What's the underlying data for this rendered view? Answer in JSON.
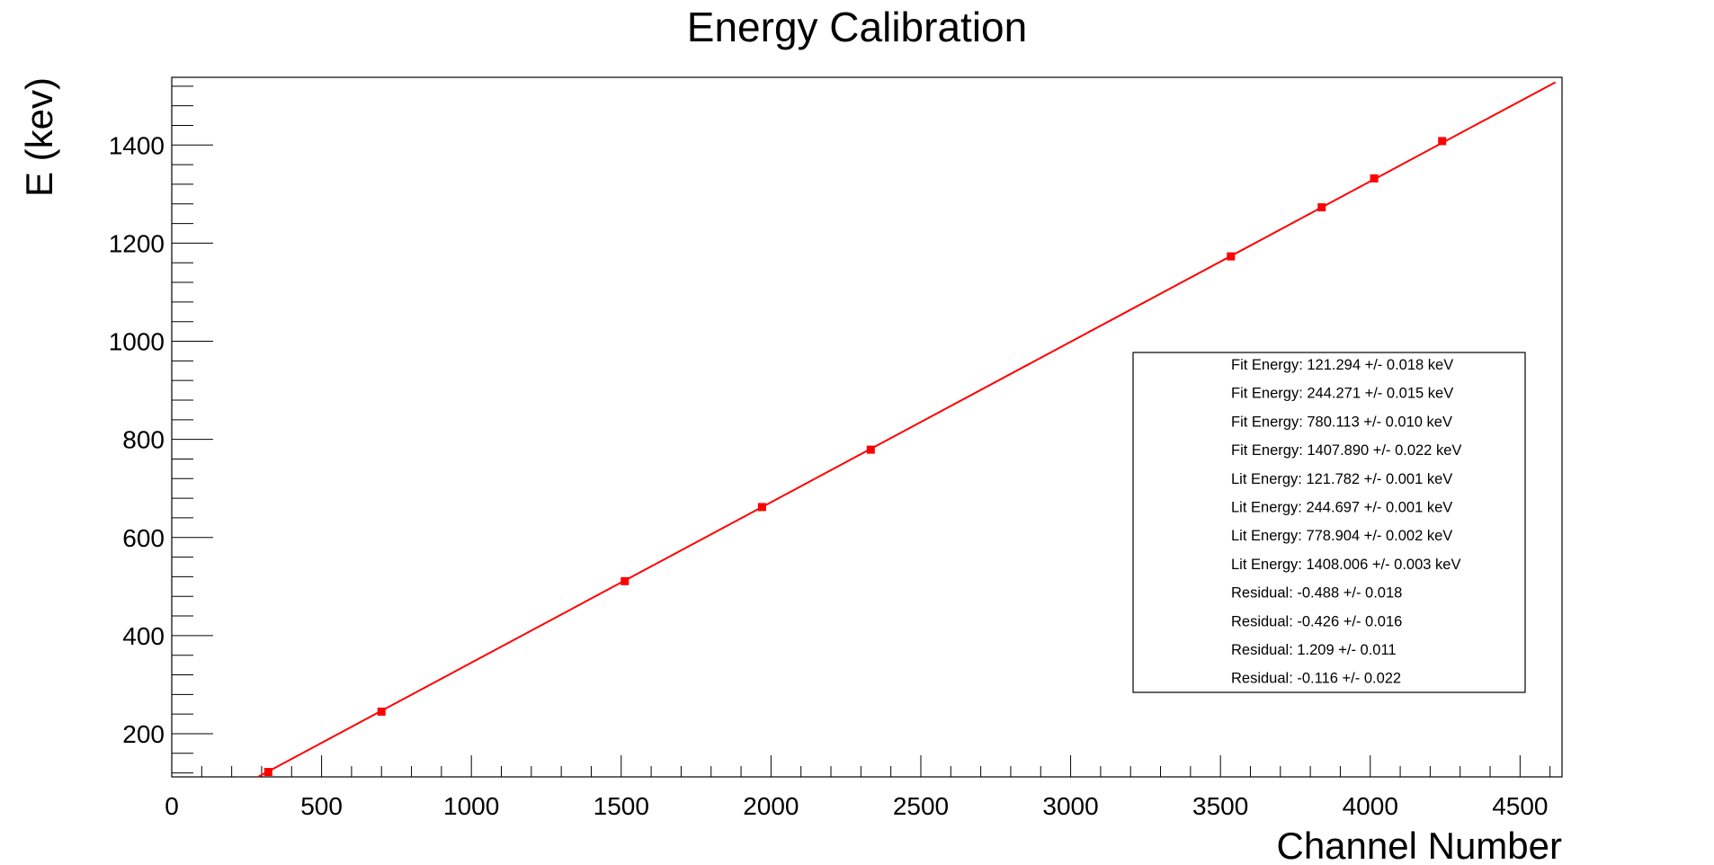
{
  "chart_data": {
    "type": "scatter",
    "title": "Energy Calibration",
    "xlabel": "Channel Number",
    "ylabel": "E (kev)",
    "xlim": [
      0,
      4640
    ],
    "ylim": [
      112,
      1538
    ],
    "x_ticks": [
      0,
      500,
      1000,
      1500,
      2000,
      2500,
      3000,
      3500,
      4000,
      4500
    ],
    "y_ticks": [
      200,
      400,
      600,
      800,
      1000,
      1200,
      1400
    ],
    "grid": false,
    "series": [
      {
        "name": "",
        "color": "#ff0000",
        "points": [
          {
            "x": 322,
            "y": 122
          },
          {
            "x": 700,
            "y": 245
          },
          {
            "x": 1512,
            "y": 511
          },
          {
            "x": 1970,
            "y": 662
          },
          {
            "x": 2333,
            "y": 779
          },
          {
            "x": 3535,
            "y": 1173
          },
          {
            "x": 3838,
            "y": 1273
          },
          {
            "x": 4013,
            "y": 1332
          },
          {
            "x": 4240,
            "y": 1408
          }
        ]
      }
    ],
    "fit_line": {
      "color": "#ff0000",
      "x": [
        288,
        4618
      ],
      "y": [
        112,
        1528
      ]
    },
    "legend": {
      "position": "center-right",
      "entries": [
        "Fit Energy: 121.294 +/- 0.018 keV",
        "Fit Energy: 244.271 +/- 0.015 keV",
        "Fit Energy: 780.113 +/- 0.010 keV",
        "Fit Energy: 1407.890 +/- 0.022 keV",
        "Lit Energy: 121.782 +/- 0.001 keV",
        "Lit Energy: 244.697 +/- 0.001 keV",
        "Lit Energy: 778.904 +/- 0.002 keV",
        "Lit Energy: 1408.006 +/- 0.003 keV",
        "Residual: -0.488 +/- 0.018",
        "Residual: -0.426 +/- 0.016",
        "Residual: 1.209 +/- 0.011",
        "Residual: -0.116 +/- 0.022"
      ]
    }
  }
}
